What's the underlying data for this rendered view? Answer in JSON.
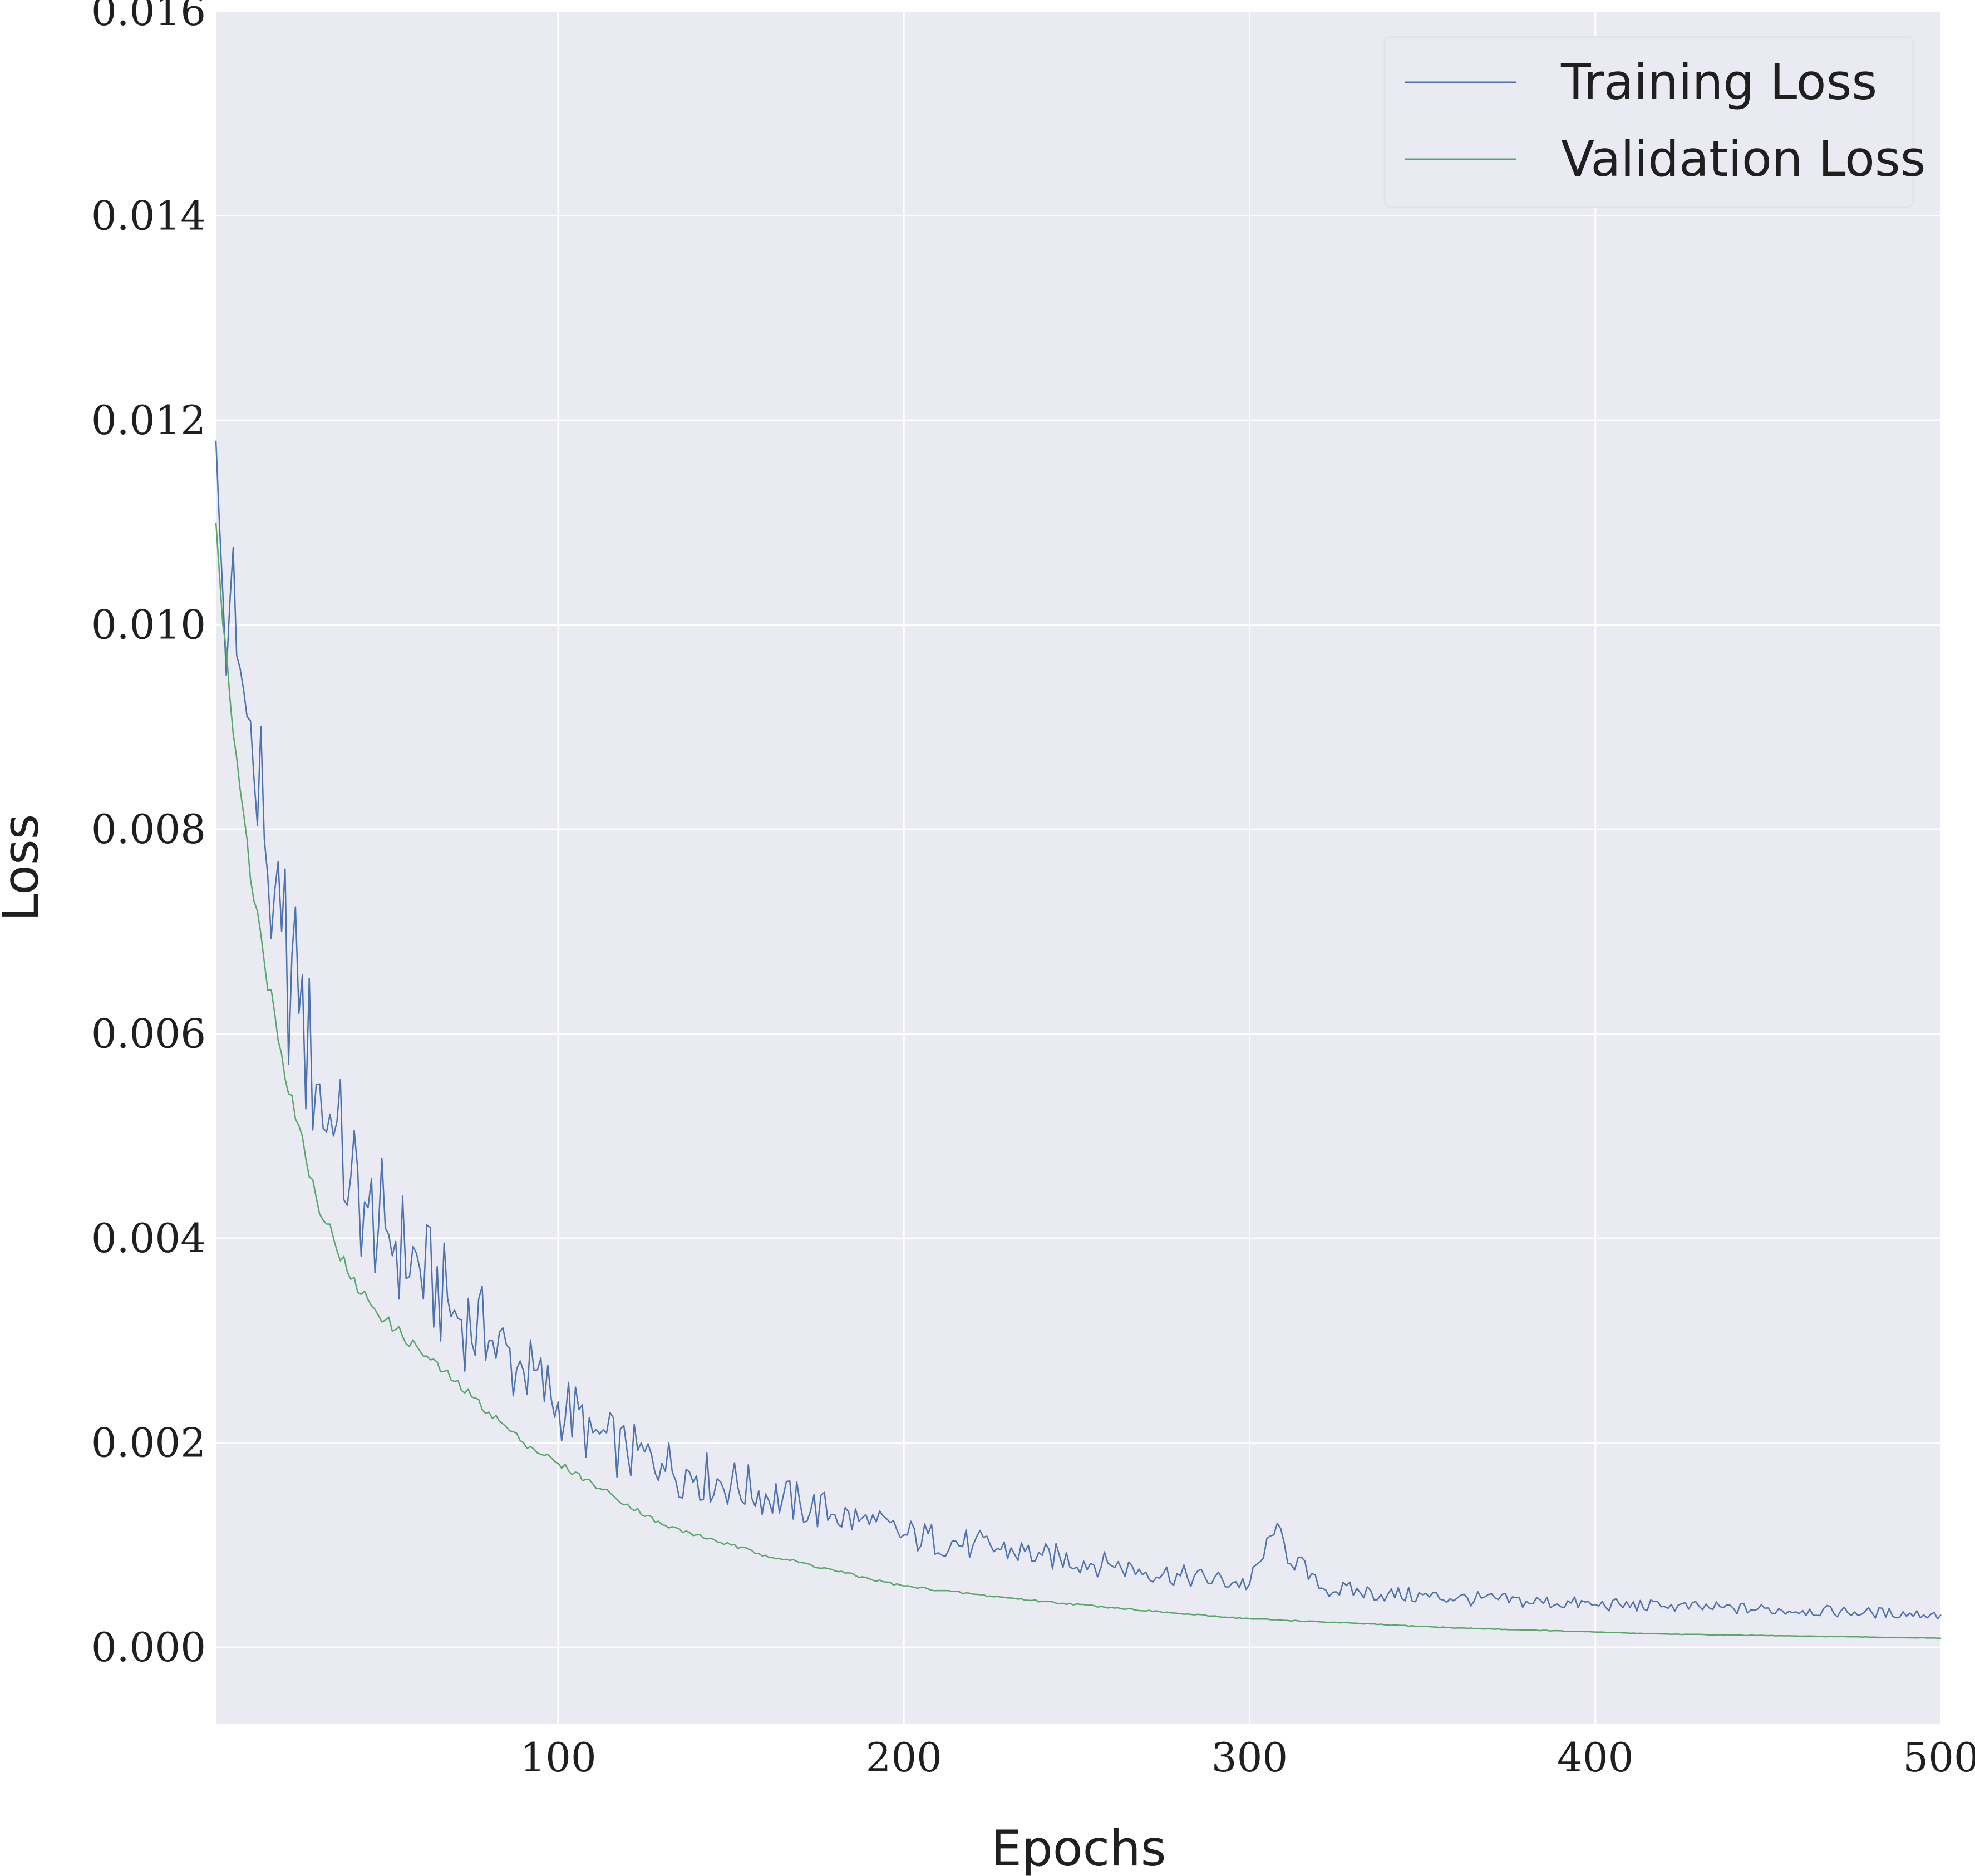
{
  "chart_data": {
    "type": "line",
    "title": "",
    "xlabel": "Epochs",
    "ylabel": "Loss",
    "xlim": [
      1,
      500
    ],
    "ylim": [
      -0.00075,
      0.016
    ],
    "x_ticks": [
      100,
      200,
      300,
      400,
      500
    ],
    "x_tick_labels": [
      "100",
      "200",
      "300",
      "400",
      "500"
    ],
    "y_ticks": [
      0.0,
      0.002,
      0.004,
      0.006,
      0.008,
      0.01,
      0.012,
      0.014,
      0.016
    ],
    "y_tick_labels": [
      "0.000",
      "0.002",
      "0.004",
      "0.006",
      "0.008",
      "0.010",
      "0.012",
      "0.014",
      "0.016"
    ],
    "grid": true,
    "legend_position": "top-right",
    "background_color": "#eaeaf2",
    "grid_color": "#ffffff",
    "x": [
      1,
      2,
      3,
      5,
      7,
      10,
      12,
      15,
      18,
      20,
      25,
      30,
      35,
      40,
      45,
      50,
      60,
      70,
      80,
      90,
      100,
      110,
      120,
      130,
      140,
      150,
      160,
      170,
      180,
      190,
      200,
      220,
      240,
      260,
      280,
      300,
      307,
      320,
      340,
      360,
      380,
      400,
      420,
      440,
      460,
      480,
      500
    ],
    "series": [
      {
        "name": "Training Loss",
        "color": "#4c72b0",
        "values": [
          0.0118,
          0.011,
          0.0103,
          0.0102,
          0.0097,
          0.0091,
          0.0085,
          0.0079,
          0.0074,
          0.007,
          0.0062,
          0.0055,
          0.005,
          0.0046,
          0.0043,
          0.0041,
          0.0037,
          0.0033,
          0.003,
          0.0027,
          0.0024,
          0.0021,
          0.0019,
          0.0018,
          0.00168,
          0.0016,
          0.0015,
          0.0014,
          0.0013,
          0.0012,
          0.0011,
          0.001,
          0.0009,
          0.0008,
          0.0007,
          0.00062,
          0.0011,
          0.00058,
          0.00052,
          0.00048,
          0.00045,
          0.00042,
          0.0004,
          0.00038,
          0.00036,
          0.00034,
          0.00032
        ]
      },
      {
        "name": "Validation Loss",
        "color": "#55a868",
        "values": [
          0.011,
          0.0105,
          0.01,
          0.0093,
          0.0087,
          0.0079,
          0.0073,
          0.0067,
          0.0062,
          0.0058,
          0.0051,
          0.0044,
          0.004,
          0.0036,
          0.0034,
          0.0032,
          0.0029,
          0.0026,
          0.0023,
          0.002,
          0.0018,
          0.0016,
          0.0014,
          0.0012,
          0.0011,
          0.001,
          0.0009,
          0.00083,
          0.00075,
          0.00067,
          0.0006,
          0.00052,
          0.00045,
          0.00039,
          0.00033,
          0.00028,
          0.00027,
          0.00025,
          0.00022,
          0.00019,
          0.00017,
          0.00015,
          0.00013,
          0.00012,
          0.00011,
          0.0001,
          9e-05
        ]
      }
    ]
  }
}
